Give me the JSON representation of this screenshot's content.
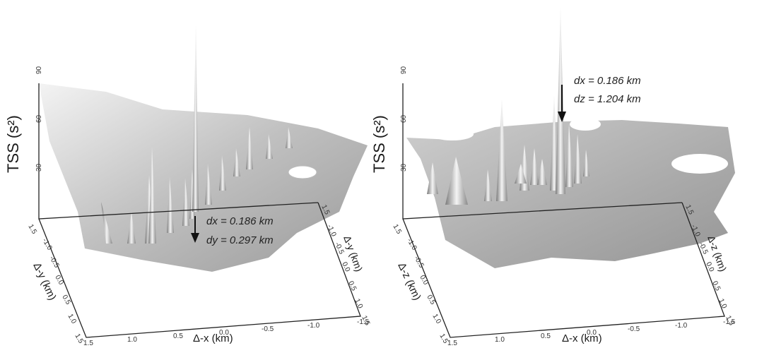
{
  "panels": [
    {
      "id": "left",
      "z_axis_label": "TSS (s²)",
      "z_ticks": [
        "90",
        "60",
        "30"
      ],
      "x_axis_label": "Δ-x (km)",
      "x_ticks": [
        "1.5",
        "1.0",
        "0.5",
        "0.0",
        "-0.5",
        "-1.0",
        "-1.5"
      ],
      "y_axis_label": "Δ-y (km)",
      "y_ticks_left": [
        "1.5",
        "-1.0",
        "-0.5",
        "0.0",
        "0.5",
        "1.0",
        "1.5"
      ],
      "y_ticks_right": [
        "1.5",
        "-1.0",
        "-0.5",
        "0.0",
        "0.5",
        "1.0",
        "1.5"
      ],
      "annotation_line1": "dx = 0.186 km",
      "annotation_line2": "dy = 0.297 km"
    },
    {
      "id": "right",
      "z_axis_label": "TSS (s²)",
      "z_ticks": [
        "90",
        "60",
        "30"
      ],
      "x_axis_label": "Δ-x (km)",
      "x_ticks": [
        "1.5",
        "1.0",
        "0.5",
        "0.0",
        "-0.5",
        "-1.0",
        "-1.5"
      ],
      "y_axis_label": "Δ-z (km)",
      "y_ticks_left": [
        "1.5",
        "-1.0",
        "-0.5",
        "0.0",
        "0.5",
        "1.0",
        "1.5"
      ],
      "y_ticks_right": [
        "1.5",
        "-1.0",
        "-0.5",
        "0.0",
        "0.5",
        "1.0",
        "1.5"
      ],
      "annotation_line1": "dx = 0.186 km",
      "annotation_line2": "dz = 1.204 km"
    }
  ],
  "colors": {
    "surface": "#9e9e9e",
    "surface_light": "#d4d4d4",
    "frame": "#222222"
  }
}
